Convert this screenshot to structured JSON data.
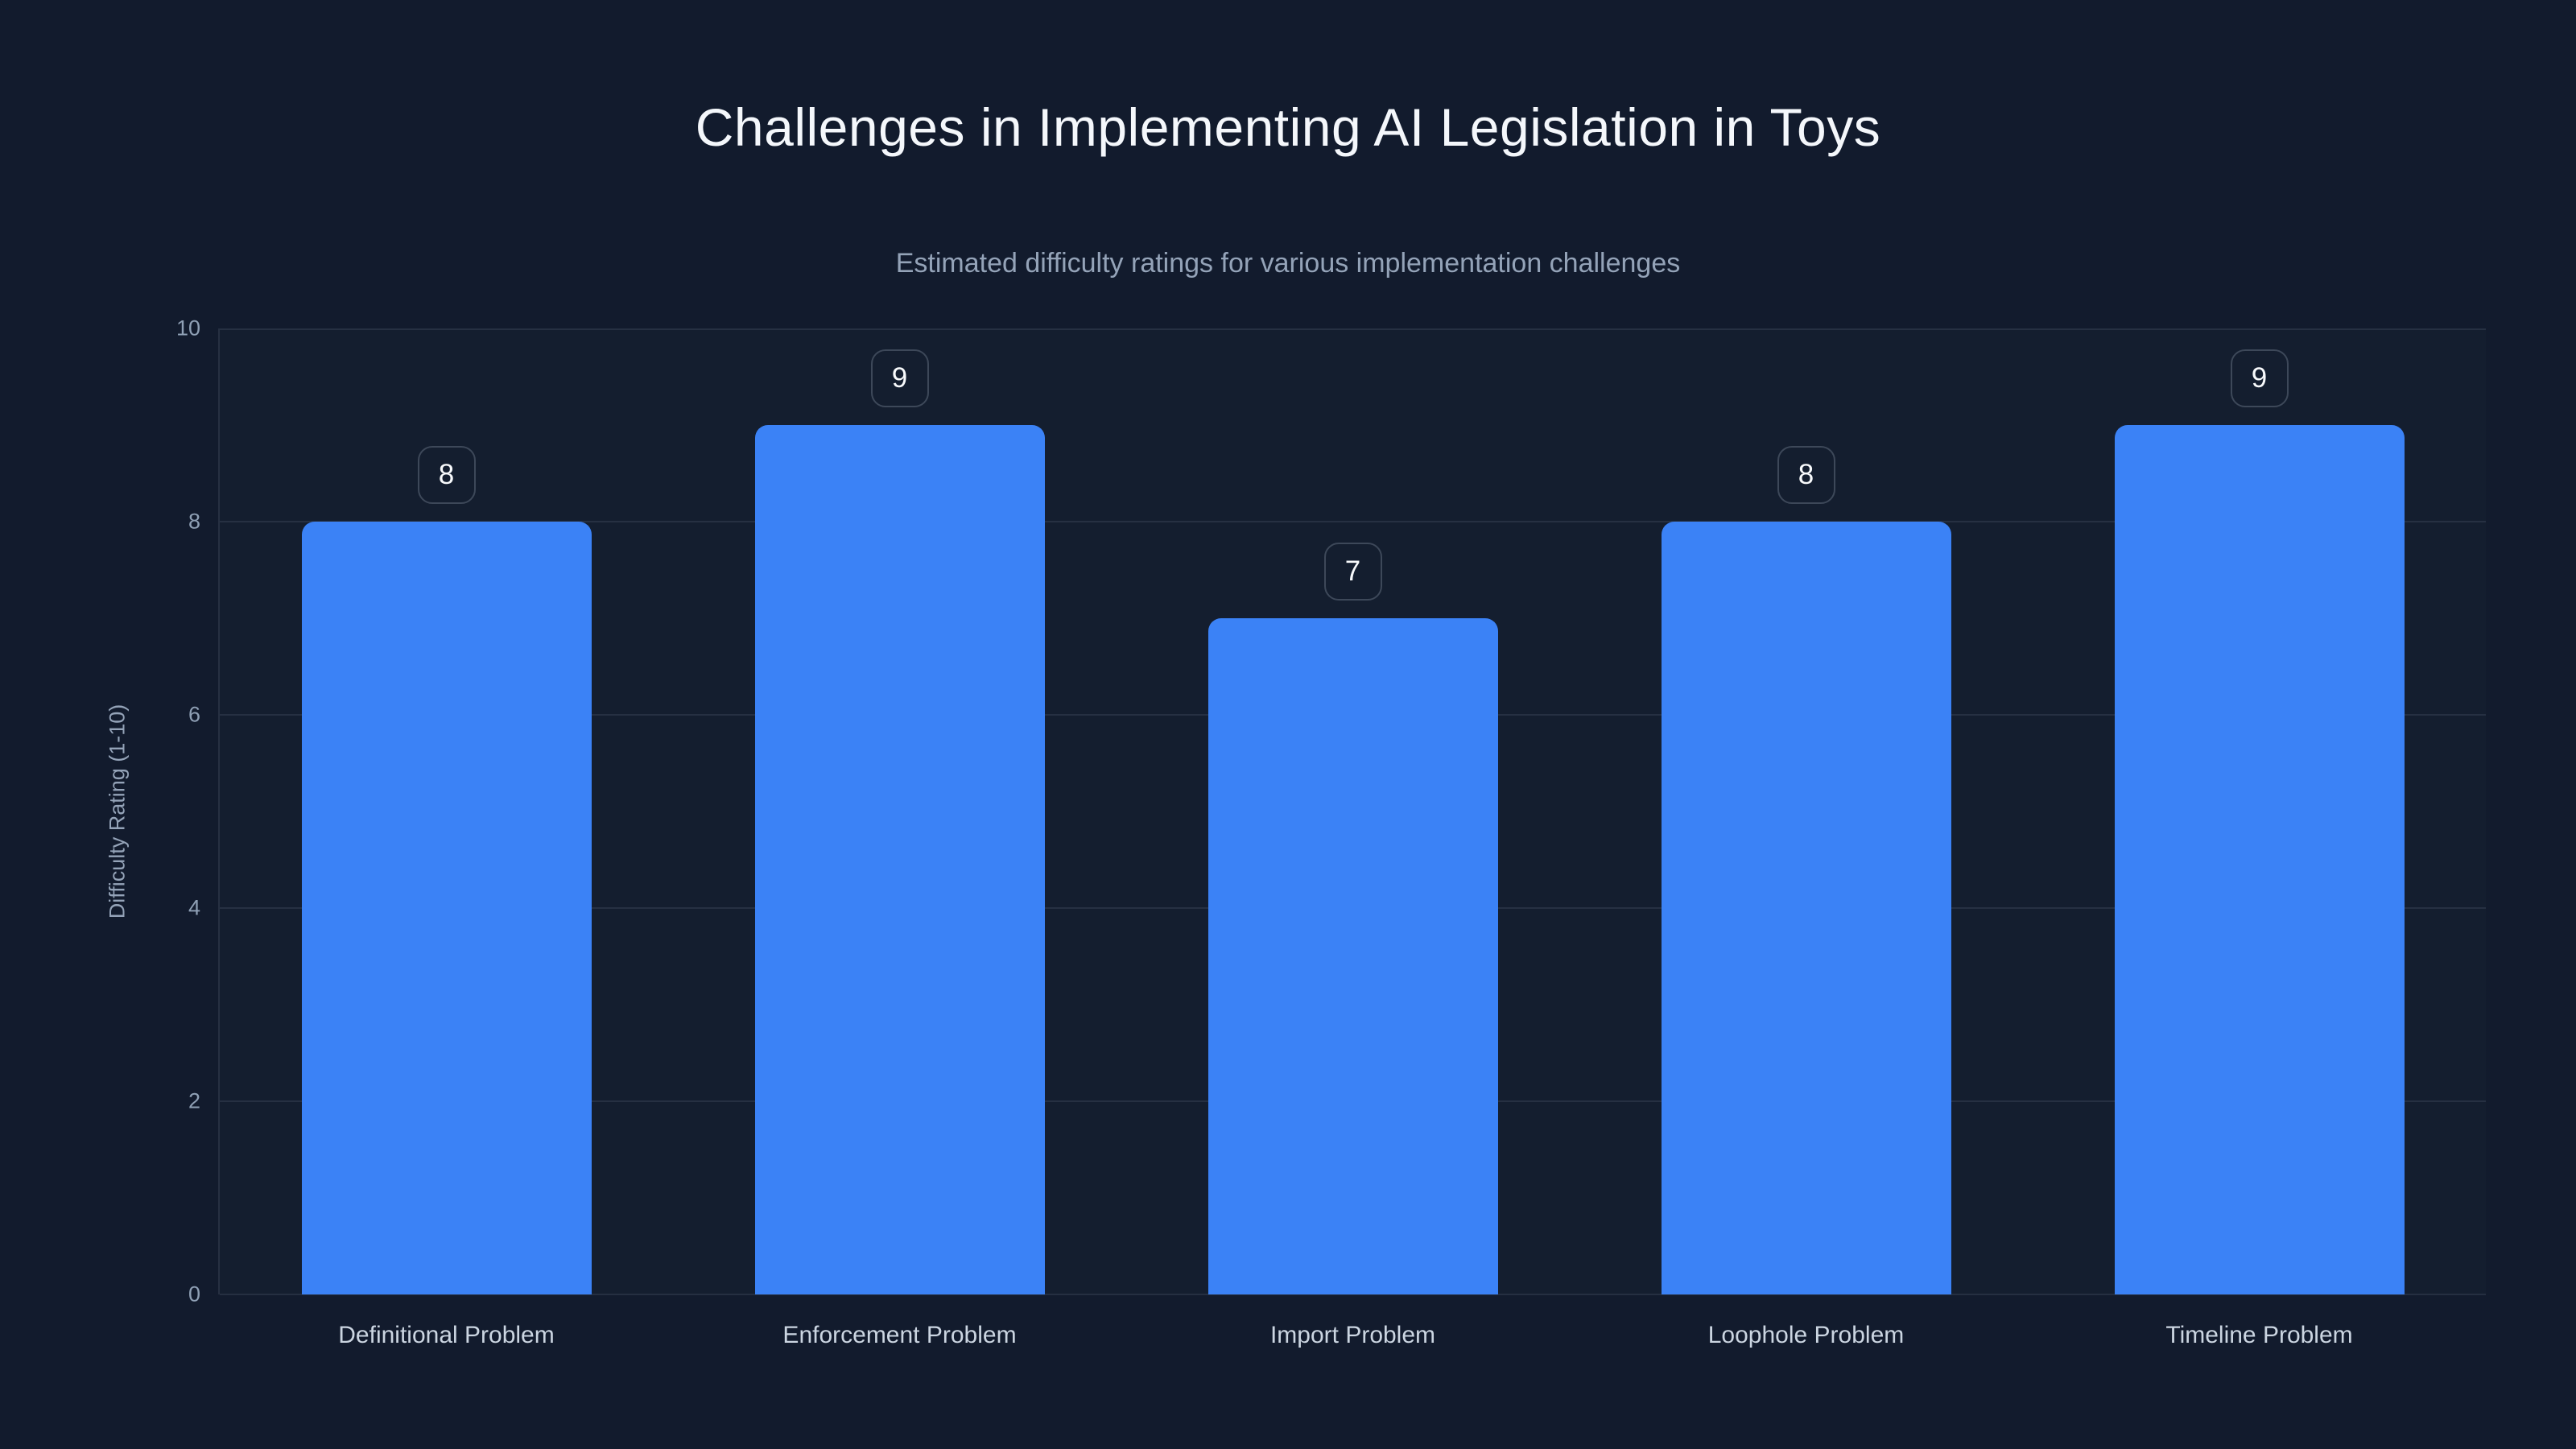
{
  "chart_data": {
    "type": "bar",
    "title": "Challenges in Implementing AI Legislation in Toys",
    "subtitle": "Estimated difficulty ratings for various implementation challenges",
    "ylabel": "Difficulty Rating (1-10)",
    "categories": [
      "Definitional Problem",
      "Enforcement Problem",
      "Import Problem",
      "Loophole Problem",
      "Timeline Problem"
    ],
    "values": [
      8,
      9,
      7,
      8,
      9
    ],
    "ylim": [
      0,
      10
    ],
    "yticks": [
      0,
      2,
      4,
      6,
      8,
      10
    ],
    "grid": true,
    "legend": "none",
    "bar_color": "#3b82f6",
    "background_color": "#121b2d",
    "gridline_color": "#232e42",
    "title_color": "#f4f7fb",
    "subtitle_color": "#94a3b8",
    "tick_label_color": "#8fa0b5",
    "category_label_color": "#cbd5e1",
    "value_badge_border_color": "#3d4859",
    "value_badge_text_color": "#f8fafc"
  }
}
